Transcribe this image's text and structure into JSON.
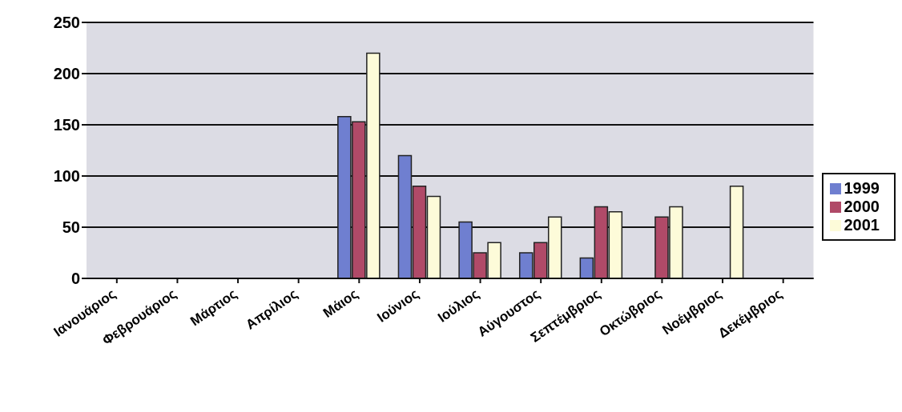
{
  "chart_data": {
    "type": "bar",
    "categories": [
      "Ιανουάριος",
      "Φεβρουάριος",
      "Μάρτιος",
      "Απρίλιος",
      "Μάιος",
      "Ιούνιος",
      "Ιούλιος",
      "Αύγουστος",
      "Σεπτέμβριος",
      "Οκτώβριος",
      "Νοέμβριος",
      "Δεκέμβριος"
    ],
    "series": [
      {
        "name": "1999",
        "color": "#6f7fd0",
        "values": [
          null,
          null,
          null,
          null,
          158,
          120,
          55,
          25,
          20,
          null,
          null,
          null
        ]
      },
      {
        "name": "2000",
        "color": "#b04a68",
        "values": [
          null,
          null,
          null,
          null,
          153,
          90,
          25,
          35,
          70,
          60,
          null,
          null
        ]
      },
      {
        "name": "2001",
        "color": "#fdfbd9",
        "values": [
          null,
          null,
          null,
          null,
          220,
          80,
          35,
          60,
          65,
          70,
          90,
          null
        ]
      }
    ],
    "ylim": [
      0,
      250
    ],
    "yticks": [
      0,
      50,
      100,
      150,
      200,
      250
    ],
    "grid": "y",
    "legend": "right"
  }
}
